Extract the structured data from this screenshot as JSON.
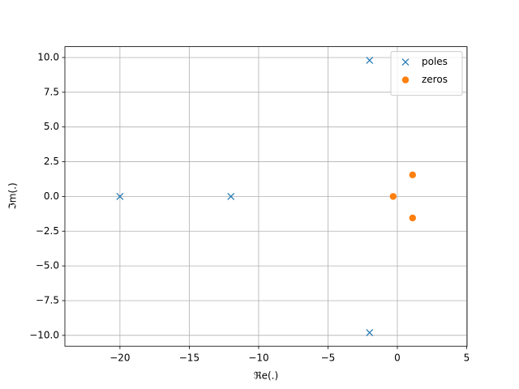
{
  "chart_data": {
    "type": "scatter",
    "xlabel": "ℜe(.)",
    "ylabel": "ℑm(.)",
    "series": [
      {
        "name": "poles",
        "color": "#1f77b4",
        "marker": "x",
        "x": [
          -2,
          -2,
          -20,
          -12
        ],
        "values": [
          9.8,
          -9.8,
          0,
          0
        ]
      },
      {
        "name": "zeros",
        "color": "#ff7f0e",
        "marker": "o",
        "x": [
          -0.3,
          1.1,
          1.1
        ],
        "values": [
          0,
          1.55,
          -1.55
        ]
      }
    ],
    "xlim": [
      -23.97,
      5.03
    ],
    "xticks": [
      {
        "value": -20,
        "label": "−20"
      },
      {
        "value": -15,
        "label": "−15"
      },
      {
        "value": -10,
        "label": "−10"
      },
      {
        "value": -5,
        "label": "−5"
      },
      0,
      5
    ],
    "ylim": [
      -10.78,
      10.78
    ],
    "yticks": [
      {
        "value": -10,
        "label": "−10.0"
      },
      {
        "value": -7.5,
        "label": "−7.5"
      },
      {
        "value": -5,
        "label": "−5.0"
      },
      {
        "value": -2.5,
        "label": "−2.5"
      },
      {
        "value": 0,
        "label": "0.0"
      },
      {
        "value": 2.5,
        "label": "2.5"
      },
      {
        "value": 5,
        "label": "5.0"
      },
      {
        "value": 7.5,
        "label": "7.5"
      },
      {
        "value": 10,
        "label": "10.0"
      }
    ],
    "grid": true,
    "legend": "upper right"
  }
}
